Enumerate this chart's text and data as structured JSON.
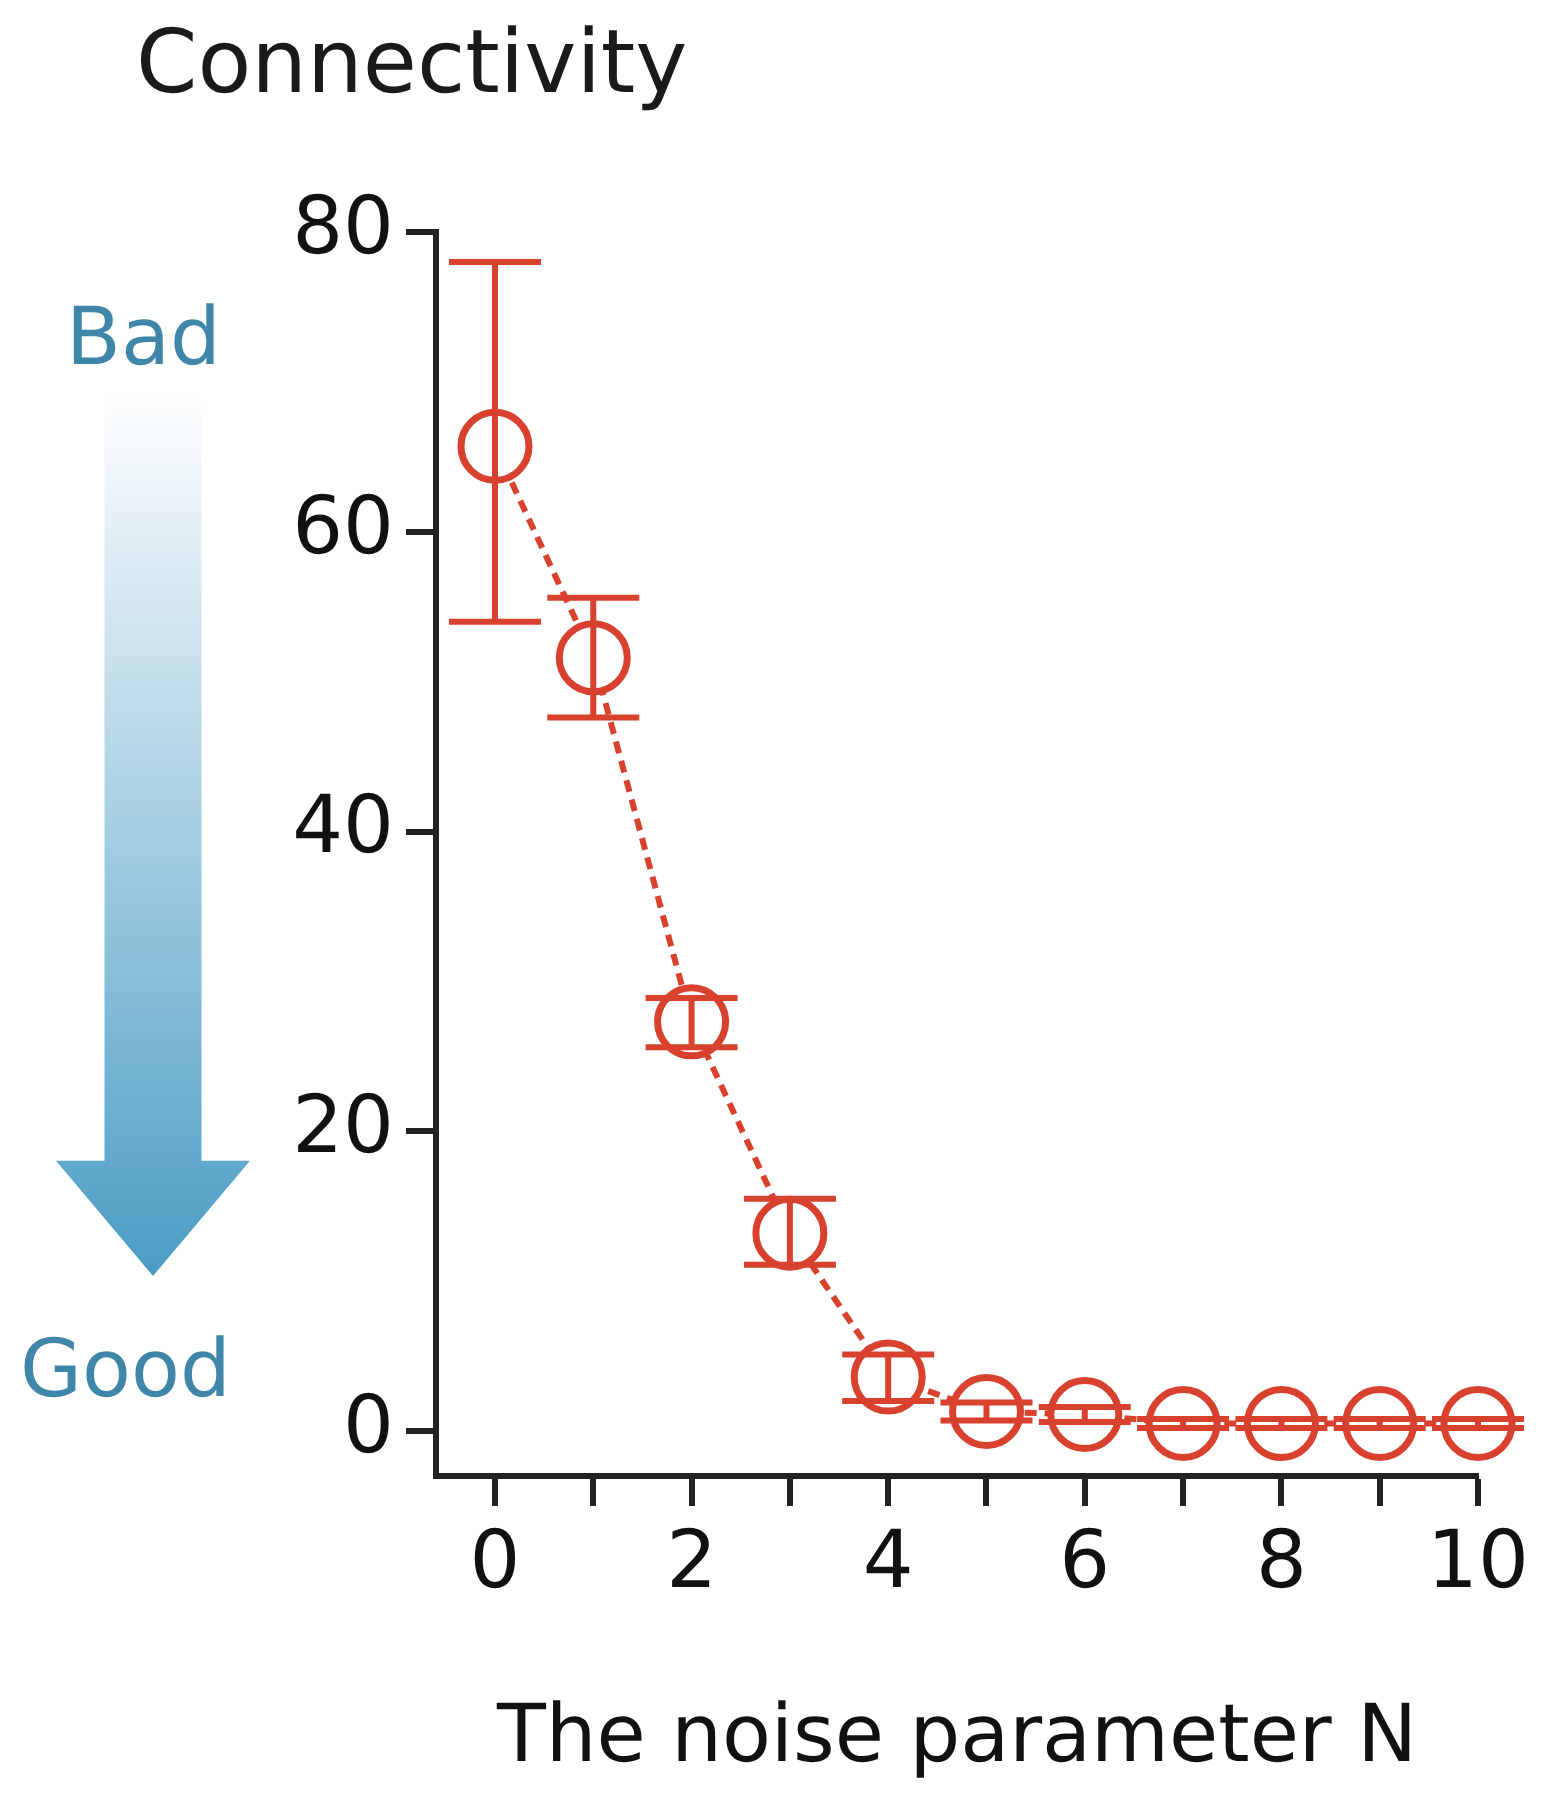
{
  "chart_data": {
    "type": "line",
    "title": "Connectivity",
    "xlabel": "The noise parameter N",
    "annotations": [
      "Bad",
      "Good"
    ],
    "x": [
      0,
      1,
      2,
      3,
      4,
      5,
      6,
      7,
      8,
      9,
      10
    ],
    "values": [
      65.7,
      51.6,
      27.3,
      13.2,
      3.6,
      1.3,
      1.1,
      0.5,
      0.5,
      0.5,
      0.5
    ],
    "color": "#d9412f",
    "errors": [
      [
        54,
        78
      ],
      [
        47.6,
        55.6
      ],
      [
        25.6,
        28.9
      ],
      [
        11.1,
        15.5
      ],
      [
        2.0,
        5.1
      ],
      [
        0.7,
        1.9
      ],
      [
        0.6,
        1.6
      ],
      [
        0.2,
        0.8
      ],
      [
        0.2,
        0.8
      ],
      [
        0.2,
        0.8
      ],
      [
        0.2,
        0.8
      ]
    ],
    "xlim": [
      -0.6,
      10
    ],
    "ylim": [
      -3,
      80
    ],
    "xticks": [
      0,
      {
        "value": 1,
        "label": null
      },
      2,
      {
        "value": 3,
        "label": null
      },
      4,
      {
        "value": 5,
        "label": null
      },
      6,
      {
        "value": 7,
        "label": null
      },
      8,
      {
        "value": 9,
        "label": null
      },
      10
    ],
    "yticks": [
      0,
      20,
      40,
      60,
      80
    ],
    "grid": false,
    "legend": false,
    "marker": "circle",
    "line_style": "dashed"
  }
}
